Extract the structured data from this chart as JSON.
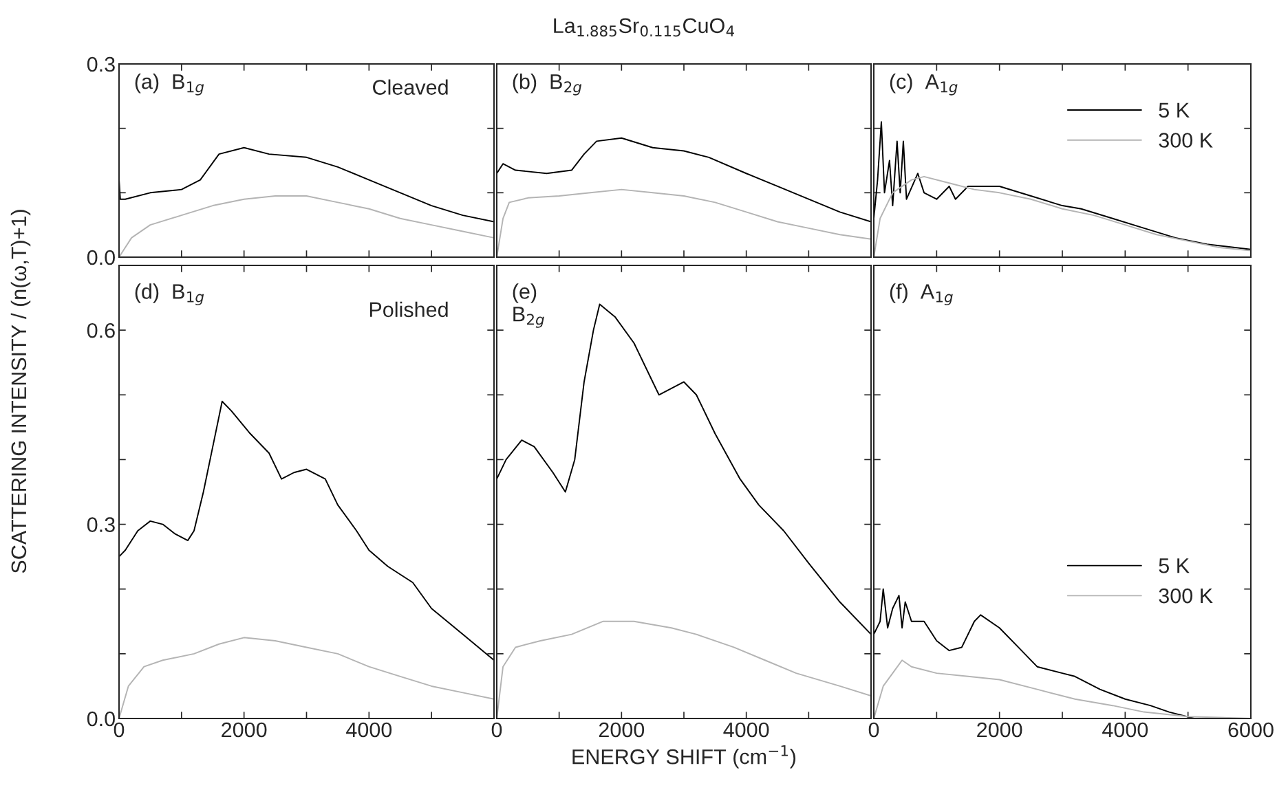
{
  "chart_data": [
    {
      "type": "line",
      "ylabel": "SCATTERING INTENSITY / (n(ω,T)+1)",
      "annotations": [
        "(a)  B$_{1g}$",
        "Cleaved"
      ],
      "tick_labels": "y",
      "xlim": [
        0,
        6000
      ],
      "ylim": [
        0,
        0.3
      ],
      "xticks": [
        {
          "value": 0,
          "label": null
        },
        {
          "value": 1000,
          "label": null
        },
        {
          "value": 2000,
          "label": null
        },
        {
          "value": 3000,
          "label": null
        },
        {
          "value": 4000,
          "label": null
        },
        {
          "value": 5000,
          "label": null
        },
        {
          "value": 6000,
          "label": null
        }
      ],
      "yticks": [
        {
          "value": 0,
          "label": "0.0"
        },
        {
          "value": 0.1,
          "label": null
        },
        {
          "value": 0.2,
          "label": null
        },
        {
          "value": 0.3,
          "label": "0.3"
        }
      ],
      "series": [
        {
          "color": "#000000",
          "x": [
            0,
            20,
            100,
            500,
            1000,
            1300,
            1600,
            2000,
            2400,
            3000,
            3500,
            4000,
            4500,
            5000,
            5500,
            6000
          ],
          "values": [
            0.12,
            0.09,
            0.09,
            0.1,
            0.105,
            0.12,
            0.16,
            0.17,
            0.16,
            0.155,
            0.14,
            0.12,
            0.1,
            0.08,
            0.065,
            0.055
          ]
        },
        {
          "color": "#b4b4b4",
          "x": [
            0,
            200,
            500,
            1000,
            1500,
            2000,
            2500,
            3000,
            3500,
            4000,
            4500,
            5000,
            5500,
            6000
          ],
          "values": [
            0,
            0.03,
            0.05,
            0.065,
            0.08,
            0.09,
            0.095,
            0.095,
            0.085,
            0.075,
            0.06,
            0.05,
            0.04,
            0.03
          ]
        }
      ]
    },
    {
      "type": "line",
      "title": "La$_{1.885}$Sr$_{0.115}$CuO$_{4}$",
      "annotations": [
        "(b)  B$_{2g}$"
      ],
      "tick_labels": false,
      "xlim": [
        0,
        6000
      ],
      "ylim": [
        0,
        0.3
      ],
      "xticks": [
        {
          "value": 0,
          "label": null
        },
        {
          "value": 1000,
          "label": null
        },
        {
          "value": 2000,
          "label": null
        },
        {
          "value": 3000,
          "label": null
        },
        {
          "value": 4000,
          "label": null
        },
        {
          "value": 5000,
          "label": null
        },
        {
          "value": 6000,
          "label": null
        }
      ],
      "yticks": [
        {
          "value": 0,
          "label": null
        },
        {
          "value": 0.1,
          "label": null
        },
        {
          "value": 0.2,
          "label": null
        },
        {
          "value": 0.3,
          "label": null
        }
      ],
      "series": [
        {
          "color": "#000000",
          "x": [
            0,
            100,
            300,
            800,
            1200,
            1400,
            1600,
            2000,
            2500,
            3000,
            3400,
            4000,
            4500,
            5000,
            5500,
            6000
          ],
          "values": [
            0.13,
            0.145,
            0.135,
            0.13,
            0.135,
            0.16,
            0.18,
            0.185,
            0.17,
            0.165,
            0.155,
            0.13,
            0.11,
            0.09,
            0.07,
            0.055
          ]
        },
        {
          "color": "#b4b4b4",
          "x": [
            0,
            100,
            200,
            500,
            1000,
            1500,
            2000,
            2500,
            3000,
            3500,
            4000,
            4500,
            5000,
            5500,
            6000
          ],
          "values": [
            0,
            0.06,
            0.085,
            0.092,
            0.095,
            0.1,
            0.105,
            0.1,
            0.095,
            0.085,
            0.07,
            0.055,
            0.045,
            0.035,
            0.028
          ]
        }
      ]
    },
    {
      "type": "line",
      "annotations": [
        "(c)  A$_{1g}$"
      ],
      "tick_labels": false,
      "legend": "top right",
      "xlim": [
        0,
        6000
      ],
      "ylim": [
        0,
        0.3
      ],
      "xticks": [
        {
          "value": 0,
          "label": null
        },
        {
          "value": 1000,
          "label": null
        },
        {
          "value": 2000,
          "label": null
        },
        {
          "value": 3000,
          "label": null
        },
        {
          "value": 4000,
          "label": null
        },
        {
          "value": 5000,
          "label": null
        },
        {
          "value": 6000,
          "label": null
        }
      ],
      "yticks": [
        {
          "value": 0,
          "label": null
        },
        {
          "value": 0.1,
          "label": null
        },
        {
          "value": 0.2,
          "label": null
        },
        {
          "value": 0.3,
          "label": null
        }
      ],
      "series": [
        {
          "name": "5 K",
          "color": "#000000",
          "x": [
            0,
            60,
            120,
            170,
            250,
            300,
            370,
            420,
            470,
            520,
            700,
            800,
            1000,
            1200,
            1300,
            1500,
            2000,
            2500,
            3000,
            3300,
            3800,
            4300,
            4800,
            5300,
            6000
          ],
          "values": [
            0.06,
            0.12,
            0.21,
            0.1,
            0.15,
            0.08,
            0.18,
            0.1,
            0.18,
            0.09,
            0.13,
            0.1,
            0.09,
            0.11,
            0.09,
            0.11,
            0.11,
            0.095,
            0.08,
            0.075,
            0.06,
            0.045,
            0.03,
            0.02,
            0.012
          ]
        },
        {
          "name": "300 K",
          "color": "#b4b4b4",
          "x": [
            0,
            100,
            300,
            600,
            800,
            1200,
            1600,
            2000,
            2500,
            3000,
            3500,
            4000,
            4500,
            5000,
            5500,
            6000
          ],
          "values": [
            0,
            0.06,
            0.1,
            0.12,
            0.125,
            0.115,
            0.105,
            0.1,
            0.09,
            0.075,
            0.065,
            0.05,
            0.035,
            0.025,
            0.015,
            0.01
          ]
        }
      ]
    },
    {
      "type": "line",
      "annotations": [
        "(d)  B$_{1g}$",
        "Polished"
      ],
      "xlim": [
        0,
        6000
      ],
      "ylim": [
        0,
        0.7
      ],
      "xticks": [
        0,
        {
          "value": 1000,
          "label": null
        },
        2000,
        {
          "value": 3000,
          "label": null
        },
        4000,
        {
          "value": 5000,
          "label": null
        },
        {
          "value": 6000,
          "label": null
        }
      ],
      "yticks": [
        {
          "value": 0,
          "label": "0.0"
        },
        {
          "value": 0.1,
          "label": null
        },
        {
          "value": 0.2,
          "label": null
        },
        {
          "value": 0.3,
          "label": "0.3"
        },
        {
          "value": 0.4,
          "label": null
        },
        {
          "value": 0.5,
          "label": null
        },
        {
          "value": 0.6,
          "label": "0.6"
        }
      ],
      "series": [
        {
          "color": "#000000",
          "x": [
            0,
            100,
            300,
            500,
            700,
            900,
            1100,
            1200,
            1350,
            1500,
            1650,
            1800,
            2100,
            2400,
            2600,
            2800,
            3000,
            3300,
            3500,
            3800,
            4000,
            4300,
            4700,
            5000,
            5500,
            6000
          ],
          "values": [
            0.25,
            0.26,
            0.29,
            0.305,
            0.3,
            0.285,
            0.275,
            0.29,
            0.35,
            0.42,
            0.49,
            0.475,
            0.44,
            0.41,
            0.37,
            0.38,
            0.385,
            0.37,
            0.33,
            0.29,
            0.26,
            0.235,
            0.21,
            0.17,
            0.13,
            0.09
          ]
        },
        {
          "color": "#b4b4b4",
          "x": [
            0,
            150,
            400,
            700,
            1200,
            1600,
            2000,
            2500,
            3000,
            3500,
            4000,
            4500,
            5000,
            5500,
            6000
          ],
          "values": [
            0,
            0.05,
            0.08,
            0.09,
            0.1,
            0.115,
            0.125,
            0.12,
            0.11,
            0.1,
            0.08,
            0.065,
            0.05,
            0.04,
            0.03
          ]
        }
      ]
    },
    {
      "type": "line",
      "xlabel": "ENERGY SHIFT (cm$^{−1}$)",
      "annotations": [
        "(e)\nB$_{2g}$"
      ],
      "tick_labels": "x",
      "xlim": [
        0,
        6000
      ],
      "ylim": [
        0,
        0.7
      ],
      "xticks": [
        0,
        {
          "value": 1000,
          "label": null
        },
        2000,
        {
          "value": 3000,
          "label": null
        },
        4000,
        {
          "value": 5000,
          "label": null
        },
        {
          "value": 6000,
          "label": null
        }
      ],
      "yticks": [
        {
          "value": 0,
          "label": null
        },
        {
          "value": 0.1,
          "label": null
        },
        {
          "value": 0.2,
          "label": null
        },
        {
          "value": 0.3,
          "label": null
        },
        {
          "value": 0.4,
          "label": null
        },
        {
          "value": 0.5,
          "label": null
        },
        {
          "value": 0.6,
          "label": null
        }
      ],
      "series": [
        {
          "color": "#000000",
          "x": [
            0,
            150,
            400,
            600,
            900,
            1100,
            1250,
            1400,
            1550,
            1650,
            1900,
            2200,
            2500,
            2600,
            2800,
            3000,
            3200,
            3500,
            3900,
            4200,
            4600,
            5000,
            5500,
            6000
          ],
          "values": [
            0.37,
            0.4,
            0.43,
            0.42,
            0.38,
            0.35,
            0.4,
            0.52,
            0.6,
            0.64,
            0.62,
            0.58,
            0.52,
            0.5,
            0.51,
            0.52,
            0.5,
            0.44,
            0.37,
            0.33,
            0.29,
            0.24,
            0.18,
            0.13
          ]
        },
        {
          "color": "#b4b4b4",
          "x": [
            0,
            100,
            300,
            700,
            1200,
            1700,
            2200,
            2800,
            3200,
            3800,
            4300,
            4800,
            5500,
            6000
          ],
          "values": [
            0,
            0.08,
            0.11,
            0.12,
            0.13,
            0.15,
            0.15,
            0.14,
            0.13,
            0.11,
            0.09,
            0.07,
            0.05,
            0.035
          ]
        }
      ]
    },
    {
      "type": "line",
      "annotations": [
        "(f)  A$_{1g}$"
      ],
      "tick_labels": "x",
      "legend": "right",
      "xlim": [
        0,
        6000
      ],
      "ylim": [
        0,
        0.7
      ],
      "xticks": [
        0,
        {
          "value": 1000,
          "label": null
        },
        2000,
        {
          "value": 3000,
          "label": null
        },
        4000,
        {
          "value": 5000,
          "label": null
        },
        6000
      ],
      "yticks": [
        {
          "value": 0,
          "label": null
        },
        {
          "value": 0.1,
          "label": null
        },
        {
          "value": 0.2,
          "label": null
        },
        {
          "value": 0.3,
          "label": null
        },
        {
          "value": 0.4,
          "label": null
        },
        {
          "value": 0.5,
          "label": null
        },
        {
          "value": 0.6,
          "label": null
        }
      ],
      "series": [
        {
          "name": "5 K",
          "color": "#000000",
          "x": [
            0,
            100,
            150,
            220,
            300,
            400,
            450,
            500,
            600,
            800,
            1000,
            1200,
            1400,
            1600,
            1700,
            2000,
            2300,
            2600,
            3000,
            3200,
            3600,
            4000,
            4400,
            4700,
            5100,
            6000
          ],
          "values": [
            0.13,
            0.15,
            0.2,
            0.14,
            0.17,
            0.19,
            0.14,
            0.18,
            0.15,
            0.15,
            0.12,
            0.105,
            0.11,
            0.15,
            0.16,
            0.14,
            0.11,
            0.08,
            0.07,
            0.065,
            0.045,
            0.03,
            0.02,
            0.01,
            0,
            0
          ]
        },
        {
          "name": "300 K",
          "color": "#b4b4b4",
          "x": [
            0,
            150,
            300,
            450,
            600,
            1000,
            1500,
            2000,
            2600,
            3200,
            3800,
            4300,
            5000,
            6000
          ],
          "values": [
            0,
            0.05,
            0.07,
            0.09,
            0.08,
            0.07,
            0.065,
            0.06,
            0.045,
            0.03,
            0.02,
            0.01,
            0.003,
            0
          ]
        }
      ]
    }
  ]
}
